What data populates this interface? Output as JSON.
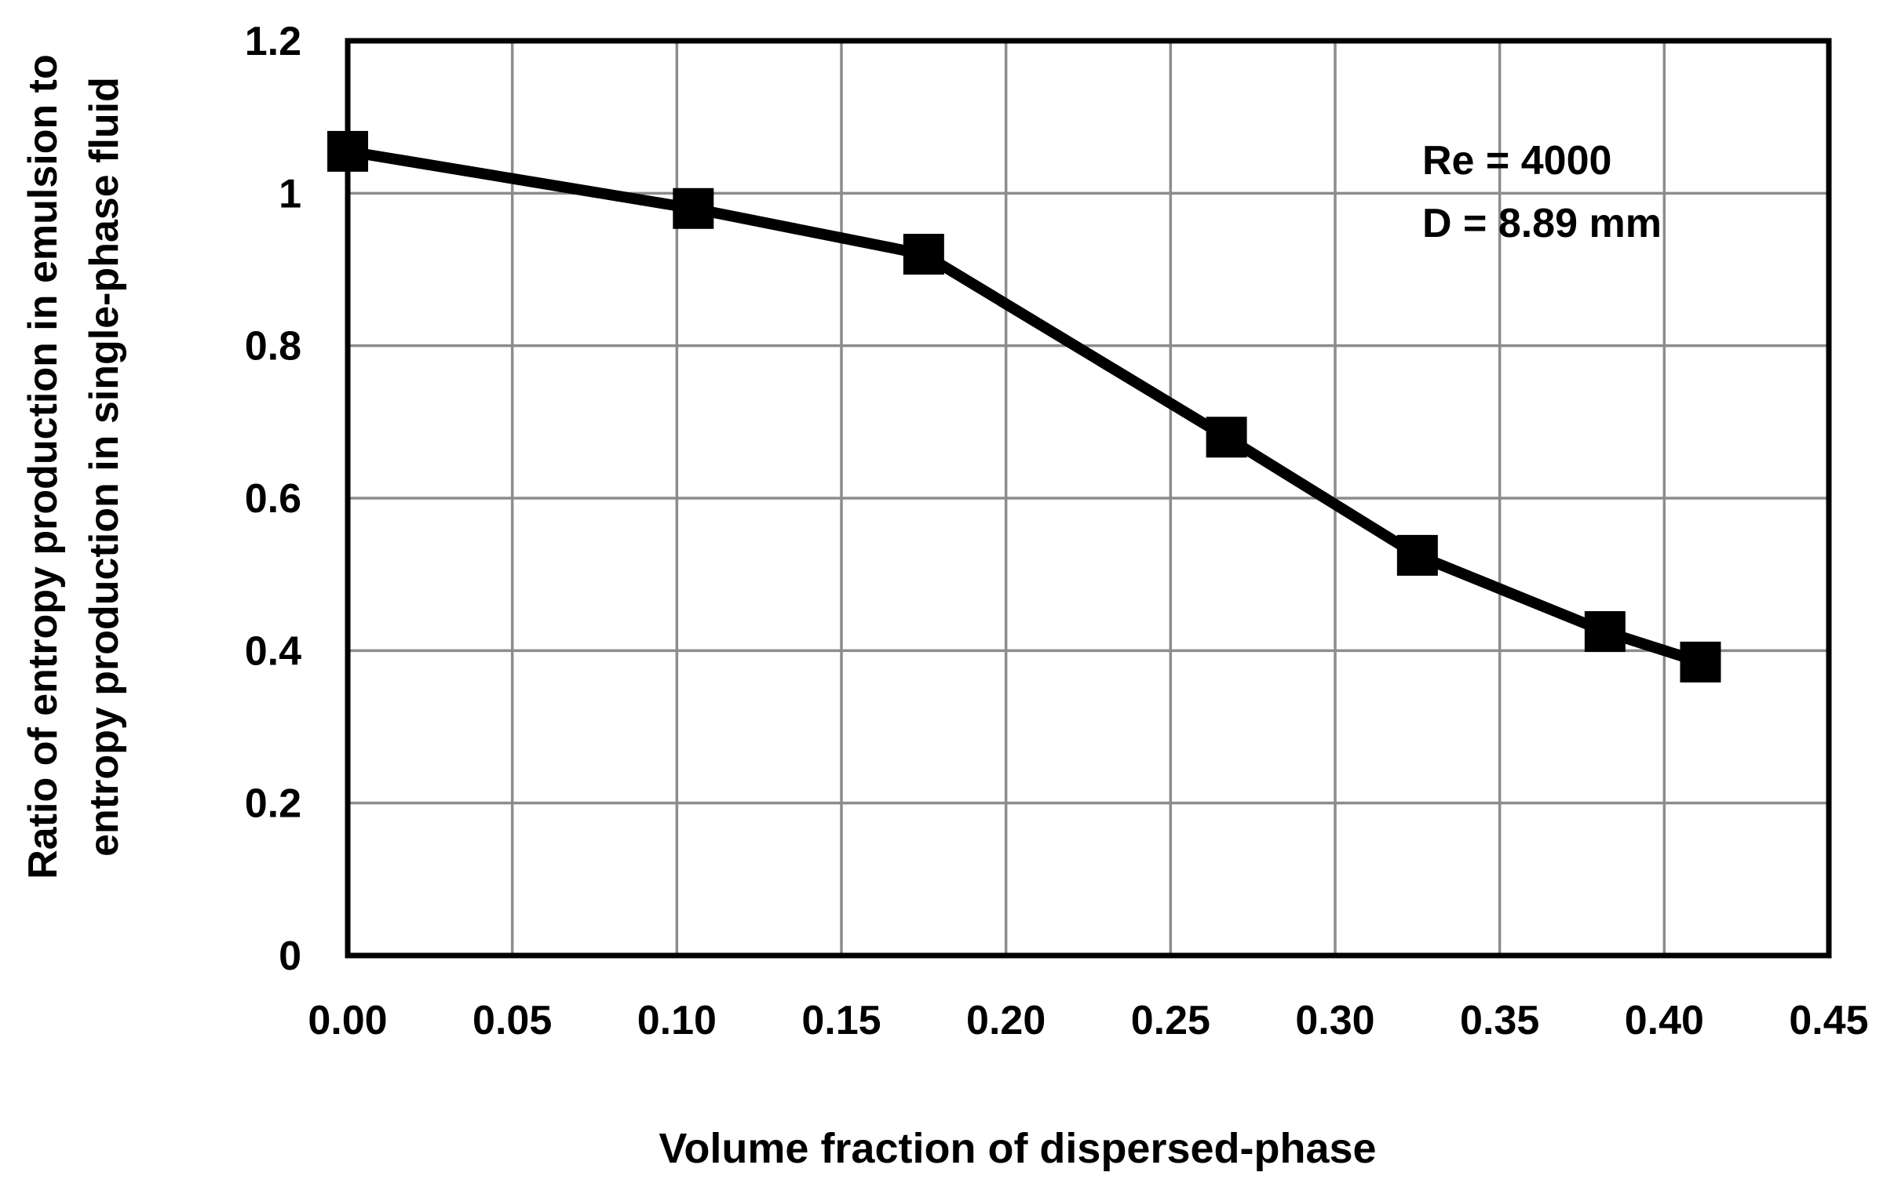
{
  "chart_data": {
    "type": "line",
    "title": "",
    "xlabel": "Volume fraction of dispersed-phase",
    "ylabel_lines": [
      "Ratio of entropy production in emulsion to",
      "entropy production in single-phase fluid"
    ],
    "xlim": [
      0,
      0.45
    ],
    "ylim": [
      0,
      1.2
    ],
    "x_ticks": [
      0,
      0.05,
      0.1,
      0.15,
      0.2,
      0.25,
      0.3,
      0.35,
      0.4,
      0.45
    ],
    "x_tick_labels": [
      "0.00",
      "0.05",
      "0.10",
      "0.15",
      "0.20",
      "0.25",
      "0.30",
      "0.35",
      "0.40",
      "0.45"
    ],
    "y_ticks": [
      0,
      0.2,
      0.4,
      0.6,
      0.8,
      1.0,
      1.2
    ],
    "y_tick_labels": [
      "0",
      "0.2",
      "0.4",
      "0.6",
      "0.8",
      "1",
      "1.2"
    ],
    "grid": true,
    "legend": "none",
    "annotations": [
      "Re = 4000",
      "D = 8.89 mm"
    ],
    "annotation_placement": "top-right",
    "series": [
      {
        "marker": "square",
        "color": "#000000",
        "x": [
          0.0,
          0.105,
          0.175,
          0.267,
          0.325,
          0.382,
          0.411
        ],
        "y": [
          1.055,
          0.98,
          0.92,
          0.68,
          0.525,
          0.425,
          0.385
        ]
      }
    ],
    "grid_color": "#8c8c8c",
    "axis_color": "#000000"
  }
}
